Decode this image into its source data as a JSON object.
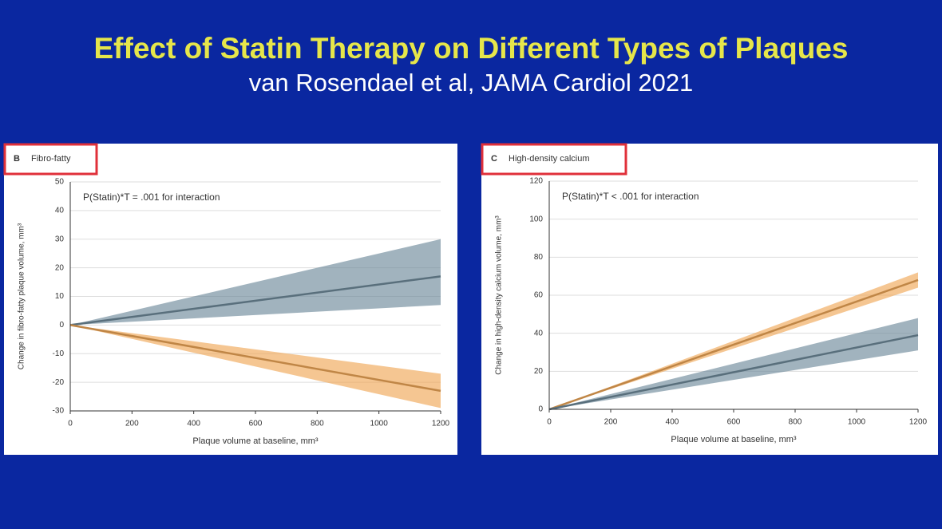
{
  "title": "Effect of Statin Therapy on Different Types of Plaques",
  "subtitle": "van Rosendael et al, JAMA Cardiol 2021",
  "chart_data": [
    {
      "type": "band",
      "panel_label": "B",
      "panel_title": "Fibro-fatty",
      "annotation": "P(Statin)*T = .001 for interaction",
      "x_label": "Plaque volume at baseline, mm³",
      "y_label": "Change in fibro-fatty plaque volume, mm³",
      "x": [
        0,
        1200
      ],
      "xlim": [
        0,
        1200
      ],
      "xticks": [
        0,
        200,
        400,
        600,
        800,
        1000,
        1200
      ],
      "ylim": [
        -30,
        50
      ],
      "yticks": [
        -30,
        -20,
        -10,
        0,
        10,
        20,
        30,
        40,
        50
      ],
      "grid": true,
      "series": [
        {
          "color": "#6f8b9b",
          "values": [
            0,
            17
          ],
          "lower": [
            0,
            7
          ],
          "upper": [
            0,
            30
          ]
        },
        {
          "color": "#f0a858",
          "values": [
            0,
            -23
          ],
          "lower": [
            0,
            -29
          ],
          "upper": [
            0,
            -17
          ]
        }
      ]
    },
    {
      "type": "band",
      "panel_label": "C",
      "panel_title": "High-density calcium",
      "annotation": "P(Statin)*T < .001 for interaction",
      "x_label": "Plaque volume at baseline, mm³",
      "y_label": "Change in high-density calcium volume, mm³",
      "x": [
        0,
        1200
      ],
      "xlim": [
        0,
        1200
      ],
      "xticks": [
        0,
        200,
        400,
        600,
        800,
        1000,
        1200
      ],
      "ylim": [
        0,
        120
      ],
      "yticks": [
        0,
        20,
        40,
        60,
        80,
        100,
        120
      ],
      "grid": true,
      "series": [
        {
          "color": "#f0a858",
          "values": [
            0,
            68
          ],
          "lower": [
            0,
            64
          ],
          "upper": [
            0,
            72
          ]
        },
        {
          "color": "#6f8b9b",
          "values": [
            0,
            39
          ],
          "lower": [
            0,
            31
          ],
          "upper": [
            0,
            48
          ]
        }
      ]
    }
  ]
}
